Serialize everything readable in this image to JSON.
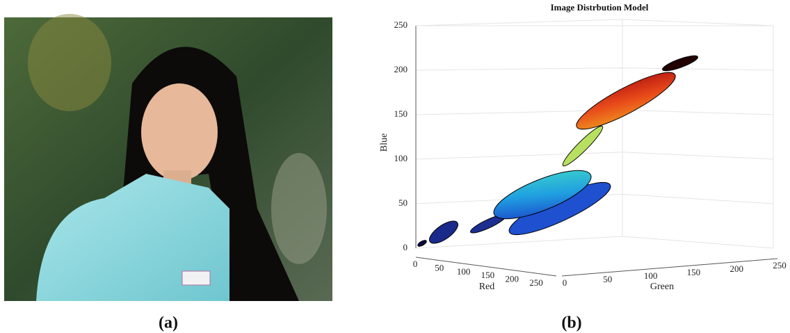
{
  "panels": [
    {
      "label": "(a)"
    },
    {
      "label": "(b)",
      "plot": {
        "title": "Image Distrbution Model",
        "x_axis": {
          "label": "Red",
          "ticks": [
            0,
            50,
            100,
            150,
            200,
            250
          ]
        },
        "y_axis": {
          "label": "Green",
          "ticks": [
            0,
            50,
            100,
            150,
            200,
            250
          ]
        },
        "z_axis": {
          "label": "Blue",
          "ticks": [
            0,
            50,
            100,
            150,
            200,
            250
          ]
        }
      }
    }
  ]
}
